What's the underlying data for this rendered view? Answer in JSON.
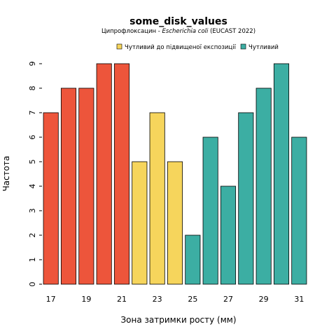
{
  "chart_data": {
    "type": "bar",
    "title": "some_disk_values",
    "subtitle": {
      "prefix": "Ципрофлоксацин - ",
      "organism": "Escherichia coli",
      "suffix": " (EUCAST 2022)"
    },
    "xlabel": "Зона затримки росту (мм)",
    "ylabel": "Частота",
    "ylim": [
      0,
      9
    ],
    "yticks": [
      0,
      1,
      2,
      3,
      4,
      5,
      6,
      7,
      8,
      9
    ],
    "x": [
      17,
      18,
      19,
      20,
      21,
      22,
      23,
      24,
      25,
      26,
      27,
      28,
      29,
      30,
      31
    ],
    "xtick_labels": [
      17,
      19,
      21,
      23,
      25,
      27,
      29,
      31
    ],
    "values": [
      7,
      8,
      8,
      9,
      9,
      5,
      7,
      5,
      2,
      6,
      4,
      7,
      8,
      9,
      6
    ],
    "categories": [
      "R",
      "R",
      "R",
      "R",
      "R",
      "I",
      "I",
      "I",
      "S",
      "S",
      "S",
      "S",
      "S",
      "S",
      "S"
    ],
    "colors": {
      "R": "#ED553B",
      "I": "#F6D55C",
      "S": "#3CAEA3"
    },
    "legend": [
      {
        "label": "Чутливий до підвищеної експозиції",
        "key": "I"
      },
      {
        "label": "Чутливий",
        "key": "S"
      }
    ],
    "legend_position": "top-right",
    "grid": false
  }
}
